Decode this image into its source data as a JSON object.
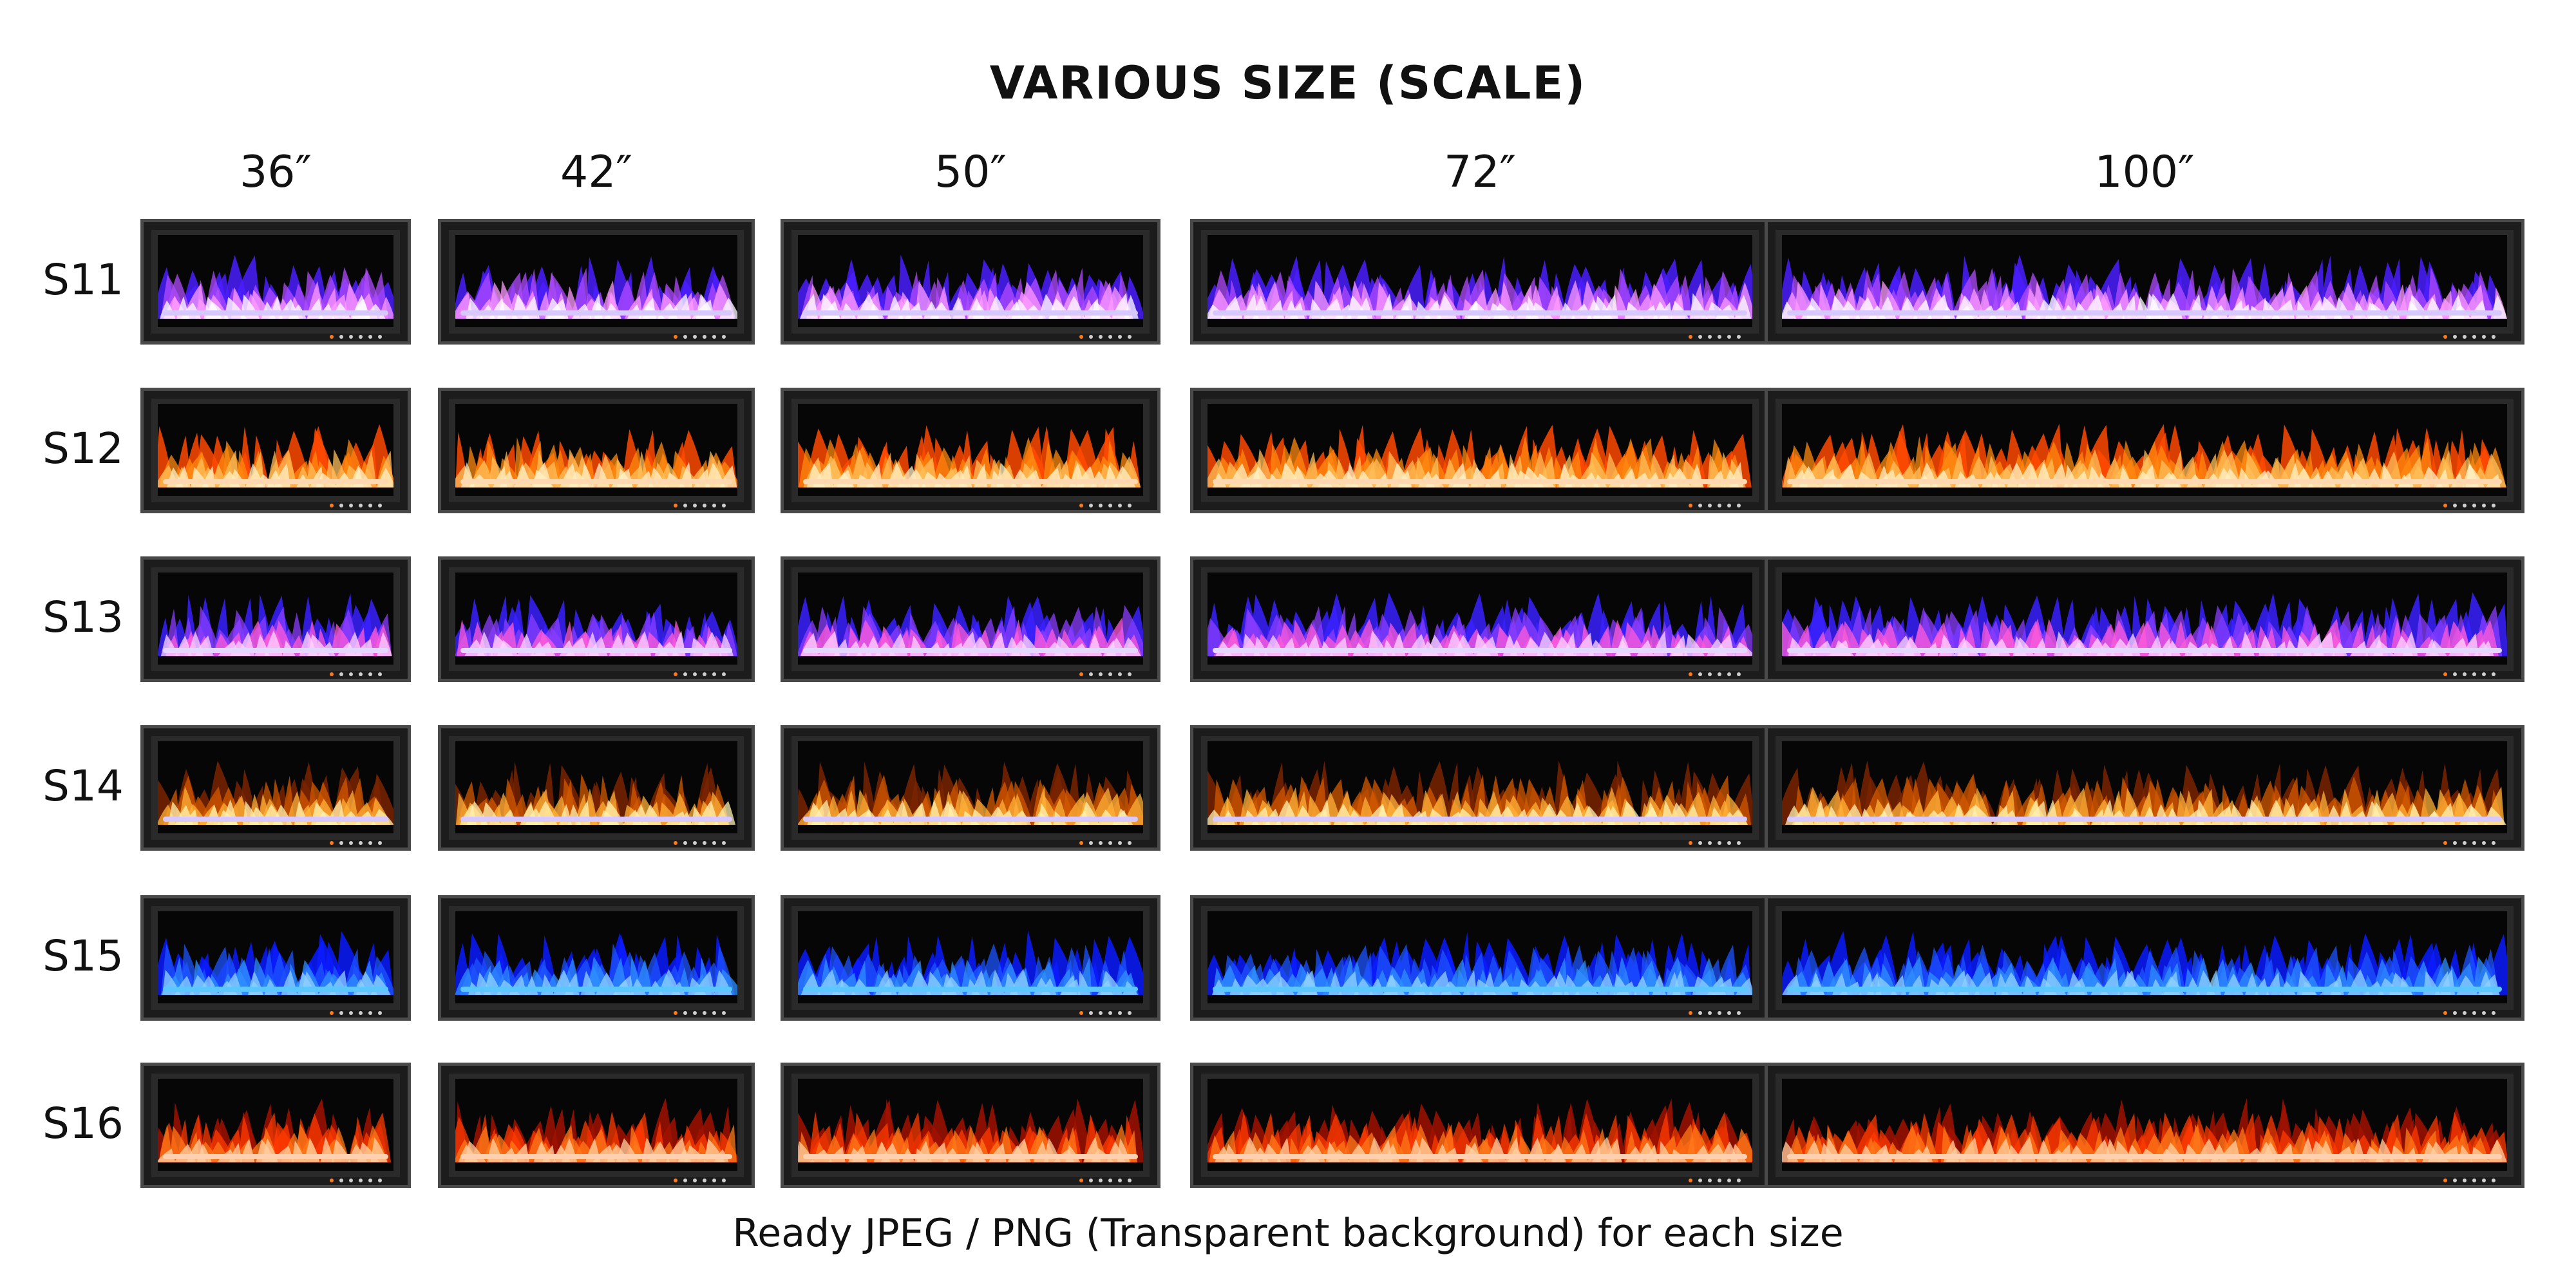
{
  "title": "VARIOUS SIZE (SCALE)",
  "sizes": [
    "36″",
    "42″",
    "50″",
    "72″",
    "100″"
  ],
  "rows": [
    {
      "label": "S11",
      "colors": [
        "#4b1fff",
        "#b04cff",
        "#ff9bff",
        "#ffffff"
      ],
      "base": "#d7c7ff"
    },
    {
      "label": "S12",
      "colors": [
        "#ff4a00",
        "#ff8a10",
        "#ffbf5a",
        "#fff0c4"
      ],
      "base": "#ffd7b0"
    },
    {
      "label": "S13",
      "colors": [
        "#3a21ff",
        "#8a3dff",
        "#ff5bd8",
        "#ffd6ff"
      ],
      "base": "#e4d7ff"
    },
    {
      "label": "S14",
      "colors": [
        "#7a2400",
        "#d35a00",
        "#ffb23a",
        "#fff2b0"
      ],
      "base": "#d8c8ff"
    },
    {
      "label": "S15",
      "colors": [
        "#0a1bff",
        "#1d54ff",
        "#2f8fff",
        "#8fd2ff"
      ],
      "base": "#5cc7ff"
    },
    {
      "label": "S16",
      "colors": [
        "#a11200",
        "#ff3b00",
        "#ff7a1a",
        "#ffd0a0"
      ],
      "base": "#ffd0b0"
    }
  ],
  "footer": "Ready JPEG / PNG (Transparent background) for each size"
}
